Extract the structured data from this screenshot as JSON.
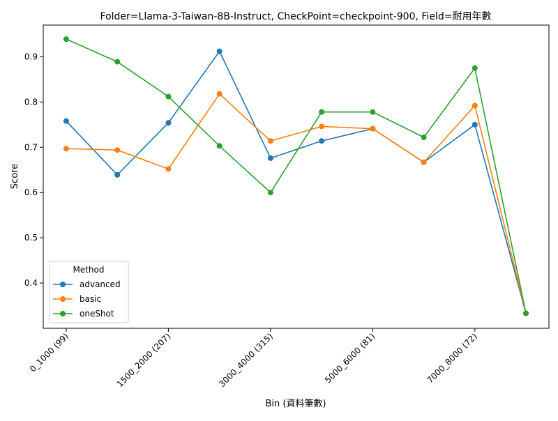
{
  "chart_data": {
    "type": "line",
    "title": "Folder=Llama-3-Taiwan-8B-Instruct, CheckPoint=checkpoint-900, Field=耐用年數",
    "xlabel": "Bin (資料筆數)",
    "ylabel": "Score",
    "x_tick_labels": [
      "0_1000 (99)",
      "1500_2000 (207)",
      "3000_4000 (315)",
      "5000_6000 (81)",
      "7000_8000 (72)"
    ],
    "x_tick_positions": [
      0,
      2,
      4,
      6,
      8
    ],
    "y_ticks": [
      0.4,
      0.5,
      0.6,
      0.7,
      0.8,
      0.9
    ],
    "y_tick_labels": [
      "0.4",
      "0.5",
      "0.6",
      "0.7",
      "0.8",
      "0.9"
    ],
    "ylim": [
      0.3,
      0.97
    ],
    "x": [
      0,
      1,
      2,
      3,
      4,
      5,
      6,
      7,
      8,
      9
    ],
    "legend_title": "Method",
    "legend_position": "lower-left",
    "series": [
      {
        "name": "advanced",
        "color": "#1f77b4",
        "values": [
          0.758,
          0.639,
          0.754,
          0.912,
          0.676,
          0.714,
          0.741,
          0.667,
          0.75,
          0.333
        ]
      },
      {
        "name": "basic",
        "color": "#ff7f0e",
        "values": [
          0.697,
          0.694,
          0.652,
          0.818,
          0.714,
          0.746,
          0.741,
          0.667,
          0.792,
          0.333
        ]
      },
      {
        "name": "oneShot",
        "color": "#2ca02c",
        "values": [
          0.939,
          0.889,
          0.812,
          0.703,
          0.6,
          0.778,
          0.778,
          0.722,
          0.875,
          0.333
        ]
      }
    ]
  }
}
